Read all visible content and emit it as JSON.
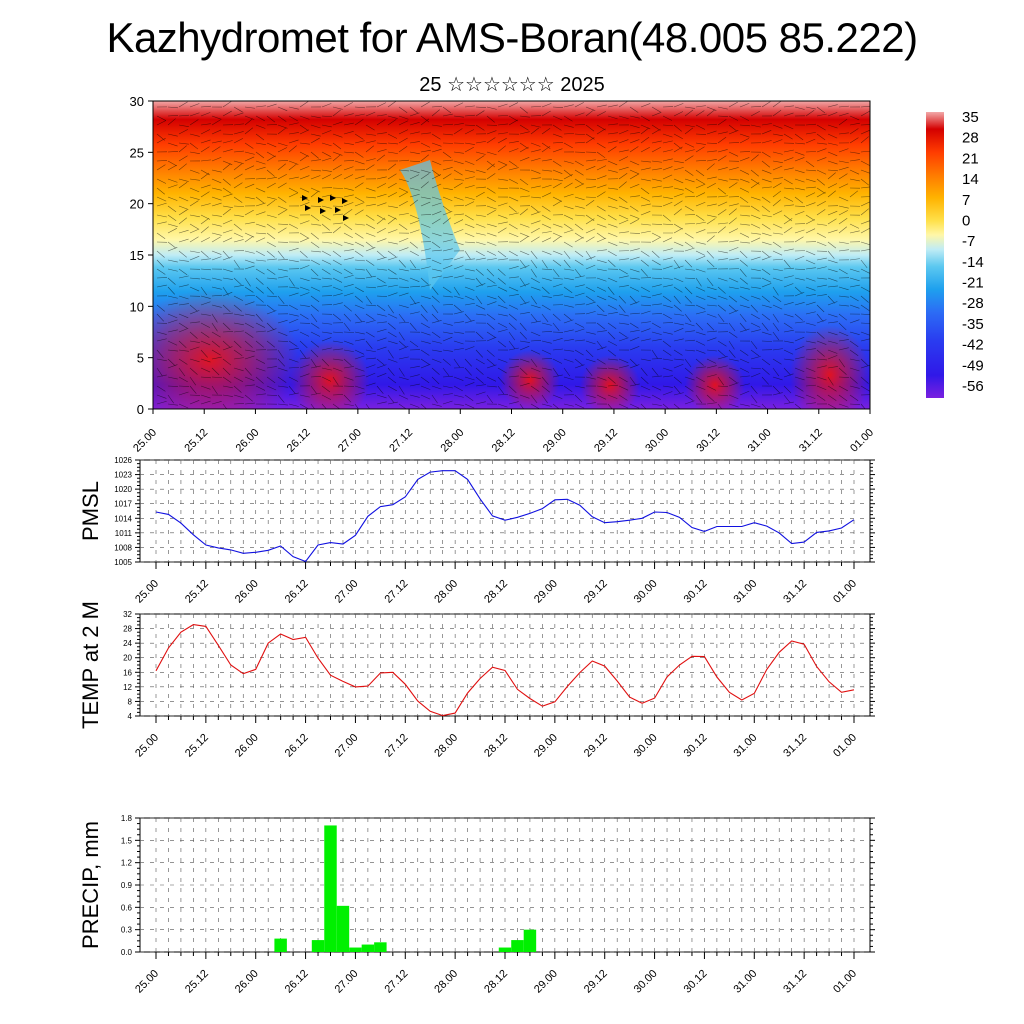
{
  "header": {
    "title": "Kazhydromet for AMS-Boran(48.005 85.222)",
    "subtitle": "25 ☆☆☆☆☆☆ 2025"
  },
  "time_labels": [
    "25.00",
    "25.12",
    "26.00",
    "26.12",
    "27.00",
    "27.12",
    "28.00",
    "28.12",
    "29.00",
    "29.12",
    "30.00",
    "30.12",
    "31.00",
    "31.12",
    "01.00"
  ],
  "chart_data": [
    {
      "type": "heatmap",
      "title": "",
      "xlabel": "",
      "ylabel": "",
      "x": [
        "25.00",
        "25.12",
        "26.00",
        "26.12",
        "27.00",
        "27.12",
        "28.00",
        "28.12",
        "29.00",
        "29.12",
        "30.00",
        "30.12",
        "31.00",
        "31.12",
        "01.00"
      ],
      "ylim": [
        0,
        30
      ],
      "yticks": [
        0,
        5,
        10,
        15,
        20,
        25,
        30
      ],
      "colorbar": {
        "ticks": [
          35,
          28,
          21,
          14,
          7,
          0,
          -7,
          -14,
          -21,
          -28,
          -35,
          -42,
          -49,
          -56
        ],
        "colors": [
          "#f2a8a8",
          "#d40000",
          "#ff3c00",
          "#ff7a00",
          "#ffb300",
          "#ffe04a",
          "#fff7a8",
          "#c0ecf5",
          "#5cc8f0",
          "#1ea0ee",
          "#2c6cf5",
          "#2a3cf0",
          "#3018e8",
          "#7a20e0"
        ]
      },
      "wind_barbs": true
    },
    {
      "type": "line",
      "ylabel": "PMSL",
      "x": [
        "25.00",
        "25.03",
        "25.06",
        "25.09",
        "25.12",
        "25.15",
        "25.18",
        "25.21",
        "26.00",
        "26.03",
        "26.06",
        "26.09",
        "26.12",
        "26.15",
        "26.18",
        "26.21",
        "27.00",
        "27.03",
        "27.06",
        "27.09",
        "27.12",
        "27.15",
        "27.18",
        "27.21",
        "28.00",
        "28.03",
        "28.06",
        "28.09",
        "28.12",
        "28.15",
        "28.18",
        "28.21",
        "29.00",
        "29.03",
        "29.06",
        "29.09",
        "29.12",
        "29.15",
        "29.18",
        "29.21",
        "30.00",
        "30.03",
        "30.06",
        "30.09",
        "30.12",
        "30.15",
        "30.18",
        "30.21",
        "31.00",
        "31.03",
        "31.06",
        "31.09",
        "31.12",
        "31.15",
        "31.18",
        "31.21",
        "01.00"
      ],
      "series": [
        {
          "color": "#1010e0",
          "values": [
            1015.3,
            1014.8,
            1013.0,
            1010.6,
            1008.5,
            1007.9,
            1007.5,
            1006.8,
            1007.0,
            1007.4,
            1008.3,
            1006.1,
            1005.1,
            1008.5,
            1009.0,
            1008.7,
            1010.5,
            1014.4,
            1016.4,
            1016.8,
            1018.4,
            1022.0,
            1023.5,
            1023.8,
            1023.8,
            1022.0,
            1018.0,
            1014.5,
            1013.6,
            1014.2,
            1015.0,
            1016.0,
            1017.8,
            1017.9,
            1016.7,
            1014.3,
            1013.1,
            1013.3,
            1013.6,
            1014.0,
            1015.3,
            1015.2,
            1014.2,
            1012.1,
            1011.3,
            1012.3,
            1012.3,
            1012.3,
            1013.1,
            1012.4,
            1011.0,
            1008.8,
            1009.1,
            1011.1,
            1011.4,
            1012.0,
            1013.7
          ]
        }
      ],
      "ylim": [
        1005,
        1026
      ],
      "yticks": [
        1005,
        1008,
        1011,
        1014,
        1017,
        1020,
        1023,
        1026
      ]
    },
    {
      "type": "line",
      "ylabel": "TEMP at 2 M",
      "x": [
        "25.00",
        "25.03",
        "25.06",
        "25.09",
        "25.12",
        "25.15",
        "25.18",
        "25.21",
        "26.00",
        "26.03",
        "26.06",
        "26.09",
        "26.12",
        "26.15",
        "26.18",
        "26.21",
        "27.00",
        "27.03",
        "27.06",
        "27.09",
        "27.12",
        "27.15",
        "27.18",
        "27.21",
        "28.00",
        "28.03",
        "28.06",
        "28.09",
        "28.12",
        "28.15",
        "28.18",
        "28.21",
        "29.00",
        "29.03",
        "29.06",
        "29.09",
        "29.12",
        "29.15",
        "29.18",
        "29.21",
        "30.00",
        "30.03",
        "30.06",
        "30.09",
        "30.12",
        "30.15",
        "30.18",
        "30.21",
        "31.00",
        "31.03",
        "31.06",
        "31.09",
        "31.12",
        "31.15",
        "31.18",
        "31.21",
        "01.00"
      ],
      "series": [
        {
          "color": "#e01010",
          "values": [
            16.4,
            22.7,
            27.0,
            29.1,
            28.6,
            23.4,
            18.0,
            15.6,
            16.8,
            24.0,
            26.5,
            25.0,
            25.6,
            19.9,
            15.2,
            13.5,
            12.0,
            12.2,
            15.8,
            16.0,
            12.7,
            8.1,
            5.3,
            4.1,
            4.8,
            10.3,
            14.3,
            17.4,
            16.5,
            11.3,
            8.8,
            6.7,
            7.9,
            12.1,
            15.9,
            19.1,
            17.7,
            13.6,
            9.2,
            7.5,
            8.9,
            14.7,
            18.0,
            20.4,
            20.3,
            14.7,
            10.5,
            8.4,
            10.2,
            16.8,
            21.5,
            24.6,
            23.7,
            17.6,
            13.4,
            10.5,
            11.2
          ]
        }
      ],
      "ylim": [
        4,
        32
      ],
      "yticks": [
        4,
        8,
        12,
        16,
        20,
        24,
        28,
        32
      ]
    },
    {
      "type": "bar",
      "ylabel": "PRECIP, mm",
      "x": [
        "25.00",
        "25.03",
        "25.06",
        "25.09",
        "25.12",
        "25.15",
        "25.18",
        "25.21",
        "26.00",
        "26.03",
        "26.06",
        "26.09",
        "26.12",
        "26.15",
        "26.18",
        "26.21",
        "27.00",
        "27.03",
        "27.06",
        "27.09",
        "27.12",
        "27.15",
        "27.18",
        "27.21",
        "28.00",
        "28.03",
        "28.06",
        "28.09",
        "28.12",
        "28.15",
        "28.18",
        "28.21",
        "29.00",
        "29.03",
        "29.06",
        "29.09",
        "29.12",
        "29.15",
        "29.18",
        "29.21",
        "30.00",
        "30.03",
        "30.06",
        "30.09",
        "30.12",
        "30.15",
        "30.18",
        "30.21",
        "31.00",
        "31.03",
        "31.06",
        "31.09",
        "31.12",
        "31.15",
        "31.18",
        "31.21",
        "01.00"
      ],
      "series": [
        {
          "color": "#00f000",
          "values": [
            0,
            0,
            0,
            0,
            0,
            0,
            0,
            0,
            0,
            0,
            0.18,
            0,
            0,
            0.16,
            1.7,
            0.62,
            0.06,
            0.1,
            0.13,
            0,
            0,
            0,
            0,
            0,
            0,
            0,
            0,
            0,
            0.06,
            0.16,
            0.3,
            0,
            0,
            0,
            0,
            0,
            0,
            0,
            0,
            0,
            0,
            0,
            0,
            0,
            0,
            0,
            0,
            0,
            0,
            0,
            0,
            0,
            0,
            0,
            0,
            0,
            0
          ]
        }
      ],
      "ylim": [
        0,
        1.8
      ],
      "yticks": [
        0.0,
        0.3,
        0.6,
        0.9,
        1.2,
        1.5,
        1.8
      ],
      "ytick_labels": [
        "0.0",
        "0.3",
        "0.6",
        "0.9",
        "1.2",
        "1.5",
        "1.8"
      ]
    }
  ]
}
